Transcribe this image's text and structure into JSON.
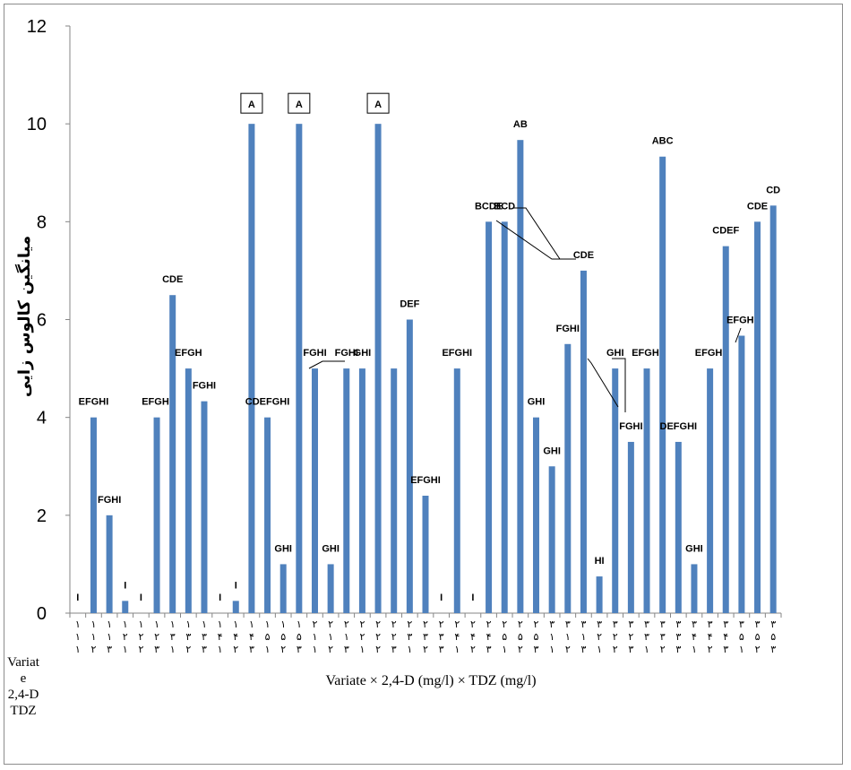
{
  "chart_data": {
    "type": "bar",
    "color": "#4f81bd",
    "xlabel": "Variate × 2,4-D (mg/l) × TDZ (mg/l)",
    "ylabel": "میانگین کالوس زایی",
    "ylim": [
      0,
      12
    ],
    "yticks": [
      "0",
      "2",
      "4",
      "6",
      "8",
      "10",
      "12"
    ],
    "grid": false,
    "row_labels": [
      "Variate",
      "2,4-D",
      "TDZ"
    ],
    "categories": [
      [
        "۱",
        "۱",
        "۱"
      ],
      [
        "۱",
        "۱",
        "۲"
      ],
      [
        "۱",
        "۱",
        "۳"
      ],
      [
        "۱",
        "۲",
        "۱"
      ],
      [
        "۱",
        "۲",
        "۲"
      ],
      [
        "۱",
        "۲",
        "۳"
      ],
      [
        "۱",
        "۳",
        "۱"
      ],
      [
        "۱",
        "۳",
        "۲"
      ],
      [
        "۱",
        "۳",
        "۳"
      ],
      [
        "۱",
        "۴",
        "۱"
      ],
      [
        "۱",
        "۴",
        "۲"
      ],
      [
        "۱",
        "۴",
        "۳"
      ],
      [
        "۱",
        "۵",
        "۱"
      ],
      [
        "۱",
        "۵",
        "۲"
      ],
      [
        "۱",
        "۵",
        "۳"
      ],
      [
        "۲",
        "۱",
        "۱"
      ],
      [
        "۲",
        "۱",
        "۲"
      ],
      [
        "۲",
        "۱",
        "۳"
      ],
      [
        "۲",
        "۲",
        "۱"
      ],
      [
        "۲",
        "۲",
        "۲"
      ],
      [
        "۲",
        "۲",
        "۳"
      ],
      [
        "۲",
        "۳",
        "۱"
      ],
      [
        "۲",
        "۳",
        "۲"
      ],
      [
        "۲",
        "۳",
        "۳"
      ],
      [
        "۲",
        "۴",
        "۱"
      ],
      [
        "۲",
        "۴",
        "۲"
      ],
      [
        "۲",
        "۴",
        "۳"
      ],
      [
        "۲",
        "۵",
        "۱"
      ],
      [
        "۲",
        "۵",
        "۲"
      ],
      [
        "۲",
        "۵",
        "۳"
      ],
      [
        "۳",
        "۱",
        "۱"
      ],
      [
        "۳",
        "۱",
        "۲"
      ],
      [
        "۳",
        "۱",
        "۳"
      ],
      [
        "۳",
        "۲",
        "۱"
      ],
      [
        "۳",
        "۲",
        "۲"
      ],
      [
        "۳",
        "۲",
        "۳"
      ],
      [
        "۳",
        "۳",
        "۱"
      ],
      [
        "۳",
        "۳",
        "۲"
      ],
      [
        "۳",
        "۳",
        "۳"
      ],
      [
        "۳",
        "۴",
        "۱"
      ],
      [
        "۳",
        "۴",
        "۲"
      ],
      [
        "۳",
        "۴",
        "۳"
      ],
      [
        "۳",
        "۵",
        "۱"
      ],
      [
        "۳",
        "۵",
        "۲"
      ],
      [
        "۳",
        "۵",
        "۳"
      ]
    ],
    "values": [
      0,
      4,
      2,
      0.25,
      0,
      4,
      6.5,
      5,
      4.33,
      0,
      0.25,
      10,
      4,
      1,
      10,
      5,
      1,
      5,
      5,
      10,
      5,
      6,
      2.4,
      0,
      5,
      0,
      8,
      8,
      9.67,
      4,
      3,
      5.5,
      7,
      0.75,
      5,
      3.5,
      5,
      9.33,
      3.5,
      1,
      5,
      7.5,
      5.67,
      8,
      8.33
    ],
    "letters": [
      "I",
      "EFGHI",
      "FGHI",
      "I",
      "I",
      "EFGHI",
      "CDE",
      "EFGH",
      "FGHI",
      "I",
      "I",
      "A",
      "CDEFGHI",
      "GHI",
      "A",
      "FGHI",
      "GHI",
      "FGHI",
      "GHI",
      "A",
      "",
      "DEF",
      "EFGHI",
      "I",
      "EFGHI",
      "I",
      "BCDE",
      "BCD",
      "AB",
      "GHI",
      "GHI",
      "FGHI",
      "CDE",
      "HI",
      "GHI",
      "FGHI",
      "EFGHI",
      "ABC",
      "DEFGHI",
      "GHI",
      "EFGHI",
      "CDEF",
      "EFGHI",
      "CDE",
      "CD"
    ],
    "boxed_letters": [
      11,
      14,
      19
    ]
  }
}
